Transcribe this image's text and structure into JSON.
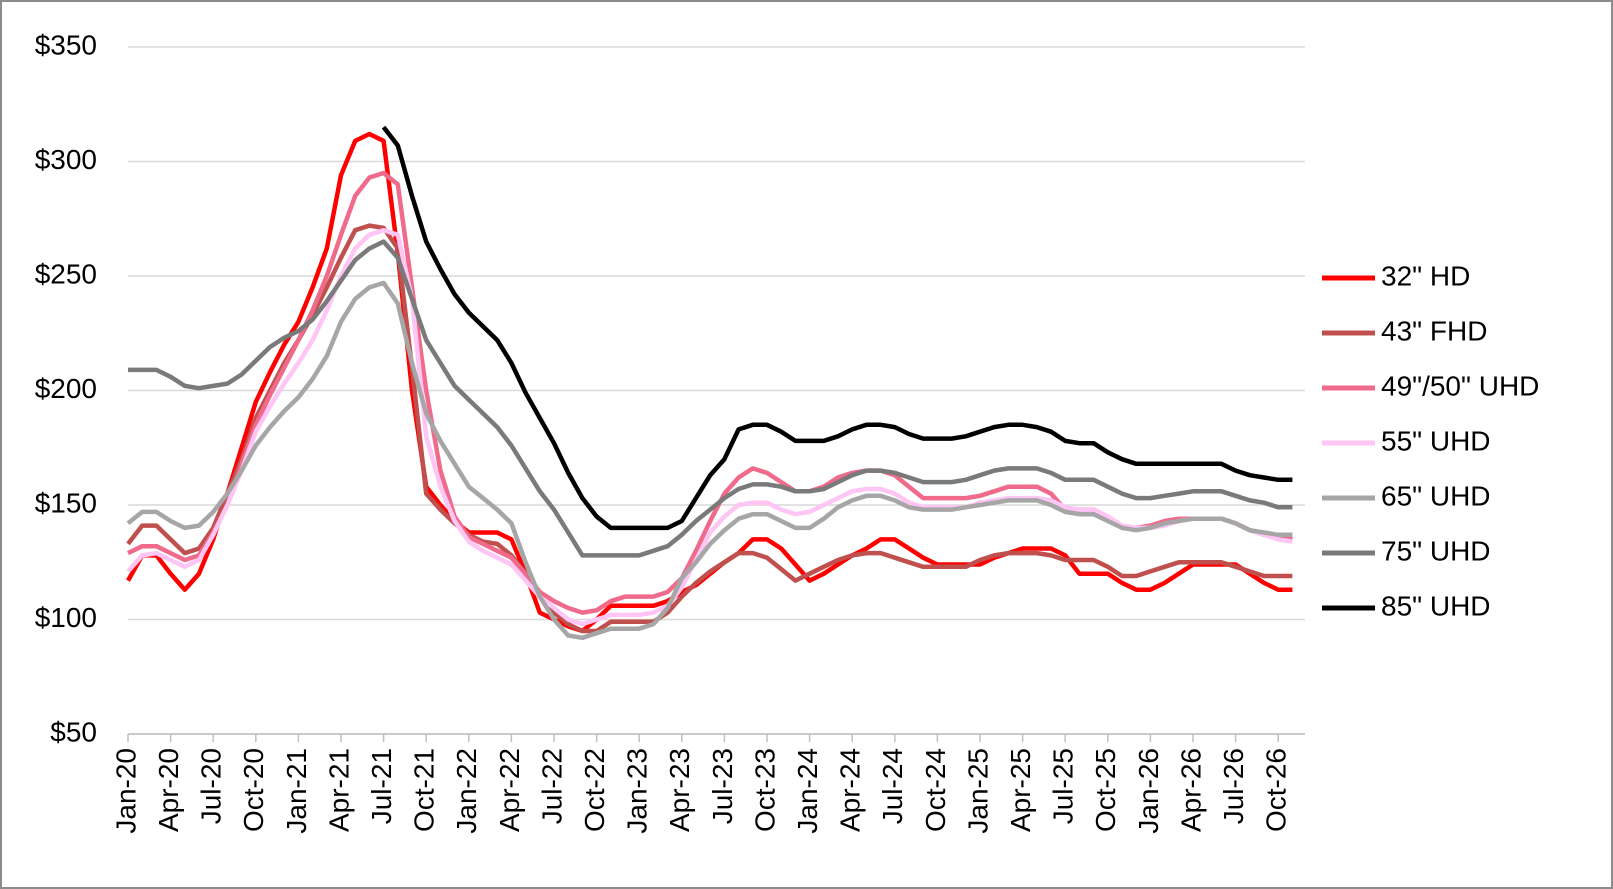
{
  "chart_data": {
    "type": "line",
    "categories": [
      "Jan-20",
      null,
      null,
      "Apr-20",
      null,
      null,
      "Jul-20",
      null,
      null,
      "Oct-20",
      null,
      null,
      "Jan-21",
      null,
      null,
      "Apr-21",
      null,
      null,
      "Jul-21",
      null,
      null,
      "Oct-21",
      null,
      null,
      "Jan-22",
      null,
      null,
      "Apr-22",
      null,
      null,
      "Jul-22",
      null,
      null,
      "Oct-22",
      null,
      null,
      "Jan-23",
      null,
      null,
      "Apr-23",
      null,
      null,
      "Jul-23",
      null,
      null,
      "Oct-23",
      null,
      null,
      "Jan-24",
      null,
      null,
      "Apr-24",
      null,
      null,
      "Jul-24",
      null,
      null,
      "Oct-24",
      null,
      null,
      "Jan-25",
      null,
      null,
      "Apr-25",
      null,
      null,
      "Jul-25",
      null,
      null,
      "Oct-25",
      null,
      null,
      "Jan-26",
      null,
      null,
      "Apr-26",
      null,
      null,
      "Jul-26",
      null,
      null,
      "Oct-26",
      null
    ],
    "series": [
      {
        "name": "32\" HD",
        "color": "#ff0000",
        "values": [
          117,
          128,
          128,
          120,
          113,
          120,
          135,
          155,
          175,
          195,
          208,
          220,
          230,
          245,
          262,
          294,
          309,
          312,
          309,
          260,
          200,
          158,
          150,
          143,
          138,
          138,
          138,
          135,
          120,
          103,
          100,
          97,
          95,
          100,
          106,
          106,
          106,
          106,
          108,
          112,
          115,
          120,
          125,
          129,
          135,
          135,
          131,
          124,
          117,
          120,
          124,
          128,
          131,
          135,
          135,
          131,
          127,
          124,
          124,
          124,
          124,
          127,
          129,
          131,
          131,
          131,
          128,
          120,
          120,
          120,
          116,
          113,
          113,
          116,
          120,
          124,
          124,
          124,
          124,
          120,
          116,
          113,
          113
        ]
      },
      {
        "name": "43\" FHD",
        "color": "#c0504d",
        "values": [
          133,
          141,
          141,
          135,
          129,
          131,
          140,
          155,
          170,
          188,
          200,
          212,
          222,
          233,
          245,
          258,
          270,
          272,
          271,
          262,
          210,
          155,
          148,
          142,
          137,
          134,
          133,
          128,
          120,
          110,
          103,
          98,
          95,
          95,
          99,
          99,
          99,
          99,
          103,
          110,
          116,
          121,
          125,
          129,
          129,
          127,
          122,
          117,
          120,
          123,
          126,
          128,
          129,
          129,
          127,
          125,
          123,
          123,
          123,
          123,
          126,
          128,
          129,
          129,
          129,
          128,
          126,
          126,
          126,
          123,
          119,
          119,
          121,
          123,
          125,
          125,
          125,
          125,
          123,
          121,
          119,
          119,
          119
        ]
      },
      {
        "name": "49\"/50\" UHD",
        "color": "#f06a8c",
        "values": [
          129,
          132,
          132,
          129,
          126,
          128,
          138,
          150,
          168,
          185,
          198,
          210,
          222,
          235,
          250,
          268,
          285,
          293,
          295,
          290,
          245,
          200,
          165,
          145,
          136,
          133,
          130,
          127,
          120,
          112,
          108,
          105,
          103,
          104,
          108,
          110,
          110,
          110,
          112,
          118,
          130,
          143,
          155,
          162,
          166,
          164,
          160,
          156,
          156,
          158,
          162,
          164,
          165,
          165,
          163,
          158,
          153,
          153,
          153,
          153,
          154,
          156,
          158,
          158,
          158,
          155,
          148,
          148,
          148,
          145,
          140,
          140,
          141,
          143,
          144,
          144,
          144,
          144,
          142,
          139,
          137,
          136,
          135
        ]
      },
      {
        "name": "55\" UHD",
        "color": "#ffc5f5",
        "values": [
          121,
          128,
          129,
          126,
          123,
          126,
          137,
          150,
          165,
          182,
          193,
          203,
          212,
          222,
          235,
          250,
          262,
          268,
          270,
          268,
          240,
          180,
          158,
          143,
          134,
          130,
          127,
          124,
          117,
          110,
          105,
          100,
          98,
          100,
          102,
          102,
          102,
          103,
          106,
          114,
          126,
          138,
          145,
          150,
          151,
          151,
          148,
          146,
          147,
          150,
          153,
          156,
          157,
          157,
          155,
          151,
          149,
          149,
          149,
          149,
          151,
          152,
          153,
          153,
          153,
          152,
          149,
          148,
          148,
          145,
          141,
          140,
          140,
          141,
          143,
          144,
          144,
          144,
          142,
          139,
          137,
          135,
          134
        ]
      },
      {
        "name": "65\" UHD",
        "color": "#a6a6a6",
        "values": [
          142,
          147,
          147,
          143,
          140,
          141,
          147,
          155,
          165,
          176,
          184,
          191,
          197,
          205,
          215,
          230,
          240,
          245,
          247,
          238,
          212,
          190,
          178,
          168,
          158,
          153,
          148,
          142,
          125,
          110,
          100,
          93,
          92,
          94,
          96,
          96,
          96,
          98,
          105,
          118,
          125,
          133,
          139,
          144,
          146,
          146,
          143,
          140,
          140,
          144,
          149,
          152,
          154,
          154,
          152,
          149,
          148,
          148,
          148,
          149,
          150,
          151,
          152,
          152,
          152,
          150,
          147,
          146,
          146,
          143,
          140,
          139,
          140,
          142,
          143,
          144,
          144,
          144,
          142,
          139,
          138,
          137,
          137
        ]
      },
      {
        "name": "75\" UHD",
        "color": "#7a7a7a",
        "values": [
          209,
          209,
          209,
          206,
          202,
          201,
          202,
          203,
          207,
          213,
          219,
          223,
          226,
          231,
          239,
          248,
          257,
          262,
          265,
          258,
          240,
          222,
          212,
          202,
          196,
          190,
          184,
          176,
          166,
          156,
          148,
          138,
          128,
          128,
          128,
          128,
          128,
          130,
          132,
          137,
          143,
          148,
          153,
          157,
          159,
          159,
          158,
          156,
          156,
          157,
          160,
          163,
          165,
          165,
          164,
          162,
          160,
          160,
          160,
          161,
          163,
          165,
          166,
          166,
          166,
          164,
          161,
          161,
          161,
          158,
          155,
          153,
          153,
          154,
          155,
          156,
          156,
          156,
          154,
          152,
          151,
          149,
          149
        ]
      },
      {
        "name": "85\" UHD",
        "color": "#000000",
        "values": [
          null,
          null,
          null,
          null,
          null,
          null,
          null,
          null,
          null,
          null,
          null,
          null,
          null,
          null,
          null,
          null,
          null,
          null,
          315,
          307,
          285,
          265,
          253,
          242,
          234,
          228,
          222,
          212,
          199,
          188,
          177,
          164,
          153,
          145,
          140,
          140,
          140,
          140,
          140,
          143,
          153,
          163,
          170,
          183,
          185,
          185,
          182,
          178,
          178,
          178,
          180,
          183,
          185,
          185,
          184,
          181,
          179,
          179,
          179,
          180,
          182,
          184,
          185,
          185,
          184,
          182,
          178,
          177,
          177,
          173,
          170,
          168,
          168,
          168,
          168,
          168,
          168,
          168,
          165,
          163,
          162,
          161,
          161
        ]
      }
    ],
    "ylim": [
      50,
      350
    ],
    "yticks": [
      {
        "value": 50,
        "label": "$50"
      },
      {
        "value": 100,
        "label": "$100"
      },
      {
        "value": 150,
        "label": "$150"
      },
      {
        "value": 200,
        "label": "$200"
      },
      {
        "value": 250,
        "label": "$250"
      },
      {
        "value": 300,
        "label": "$300"
      },
      {
        "value": 350,
        "label": "$350"
      }
    ],
    "grid": true,
    "legend": "right"
  }
}
